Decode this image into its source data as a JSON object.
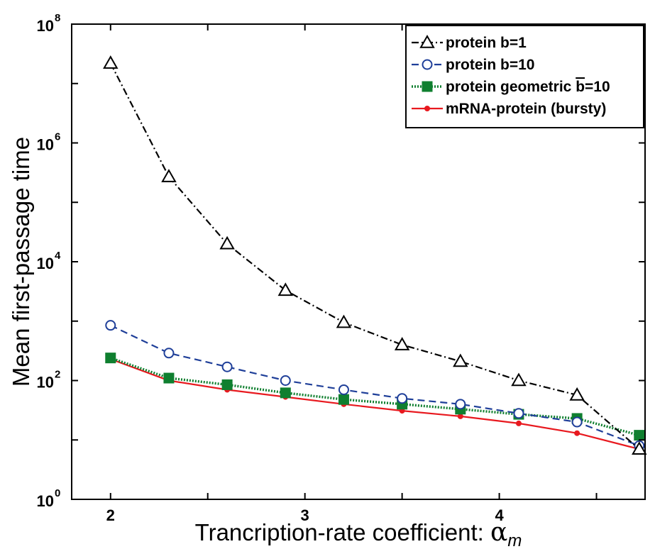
{
  "chart_data": {
    "type": "line",
    "xlabel": "Trancription-rate coefficient: ",
    "xlabel_symbol": "α",
    "xlabel_subscript": "m",
    "ylabel": "Mean first-passage time",
    "x_scale": "linear",
    "y_scale": "log10",
    "xlim": [
      1.8,
      4.75
    ],
    "ylim": [
      1,
      100000000
    ],
    "x_ticks": [
      2,
      3,
      4
    ],
    "y_tick_exponents": [
      0,
      2,
      4,
      6,
      8
    ],
    "y_tick_base": "10",
    "grid": false,
    "legend_position": "top-right",
    "x": [
      2.0,
      2.3,
      2.6,
      2.9,
      3.2,
      3.5,
      3.8,
      4.1,
      4.4,
      4.72
    ],
    "series": [
      {
        "name": "protein b=1",
        "color": "#000000",
        "marker": "triangle",
        "linestyle": "dash-dot",
        "values": [
          22000000,
          270000,
          20000,
          3300,
          950,
          400,
          210,
          100,
          57,
          7
        ]
      },
      {
        "name": "protein  b=10",
        "color": "#1f3f99",
        "marker": "circle",
        "linestyle": "dashed",
        "values": [
          850,
          290,
          170,
          100,
          70,
          50,
          40,
          28,
          20,
          8
        ]
      },
      {
        "name": "protein geometric ",
        "name_overlined": "b",
        "name_suffix": "=10",
        "color": "#0f7f2f",
        "marker": "square",
        "linestyle": "dotted",
        "values": [
          240,
          110,
          85,
          62,
          48,
          40,
          33,
          27,
          23,
          12
        ]
      },
      {
        "name": "mRNA-protein (bursty)",
        "color": "#e8191f",
        "marker": "dot",
        "linestyle": "solid",
        "values": [
          230,
          100,
          70,
          53,
          40,
          31,
          25,
          19,
          13,
          7
        ]
      }
    ]
  }
}
